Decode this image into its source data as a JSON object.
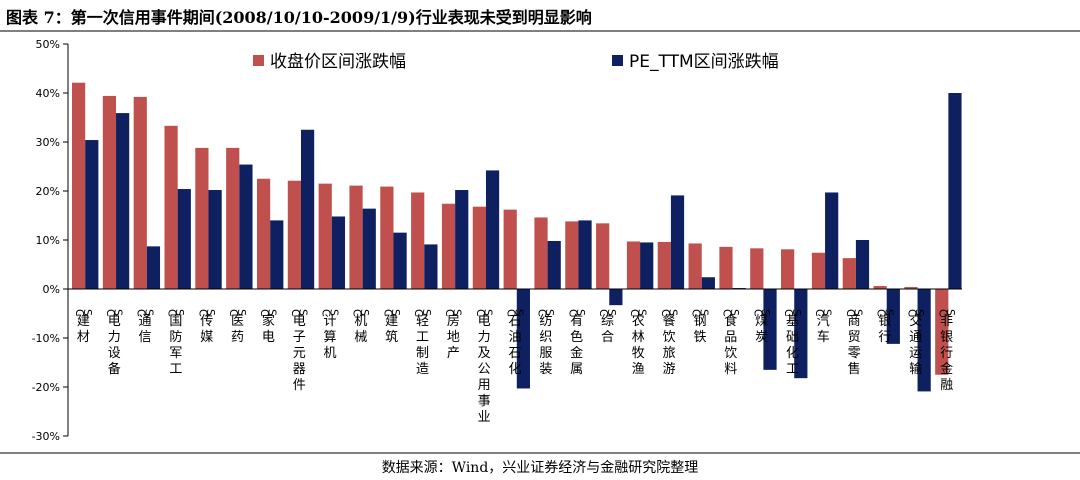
{
  "figure": {
    "title": "图表 7：第一次信用事件期间(2008/10/10-2009/1/9)行业表现未受到明显影响",
    "source": "数据来源：Wind，兴业证券经济与金融研究院整理"
  },
  "chart_data": {
    "type": "bar",
    "categories": [
      "CS建材",
      "CS电力设备",
      "CS通信",
      "CS国防军工",
      "CS传媒",
      "CS医药",
      "CS家电",
      "CS电子元器件",
      "CS计算机",
      "CS机械",
      "CS建筑",
      "CS轻工制造",
      "CS房地产",
      "CS电力及公用事业",
      "CS石油石化",
      "CS纺织服装",
      "CS有色金属",
      "CS综合",
      "CS农林牧渔",
      "CS餐饮旅游",
      "CS钢铁",
      "CS食品饮料",
      "CS煤炭",
      "CS基础化工",
      "CS汽车",
      "CS商贸零售",
      "CS银行",
      "CS交通运输",
      "CS非银行金融"
    ],
    "series": [
      {
        "name": "收盘价区间涨跌幅",
        "color": "#c0504d",
        "values": [
          42.1,
          39.4,
          39.2,
          33.3,
          28.8,
          28.8,
          22.5,
          22.1,
          21.5,
          21.1,
          20.9,
          19.7,
          17.4,
          16.8,
          16.2,
          14.6,
          13.8,
          13.4,
          9.7,
          9.6,
          9.3,
          8.6,
          8.3,
          8.1,
          7.4,
          6.3,
          0.6,
          0.4,
          -17.5
        ]
      },
      {
        "name": "PE_TTM区间涨跌幅",
        "color": "#0f2060",
        "values": [
          30.4,
          35.9,
          8.7,
          20.4,
          20.2,
          25.4,
          14.0,
          32.5,
          14.8,
          16.4,
          11.5,
          9.1,
          20.2,
          24.2,
          -20.3,
          9.8,
          14.0,
          -3.3,
          9.5,
          19.1,
          2.4,
          0.2,
          -16.5,
          -18.2,
          19.7,
          10.0,
          -11.2,
          -20.9,
          40.0
        ]
      }
    ],
    "yticks": [
      "50%",
      "40%",
      "30%",
      "20%",
      "10%",
      "0%",
      "-10%",
      "-20%",
      "-30%"
    ],
    "ylim": [
      -30,
      50
    ],
    "grid": false,
    "legend_position": "top"
  }
}
